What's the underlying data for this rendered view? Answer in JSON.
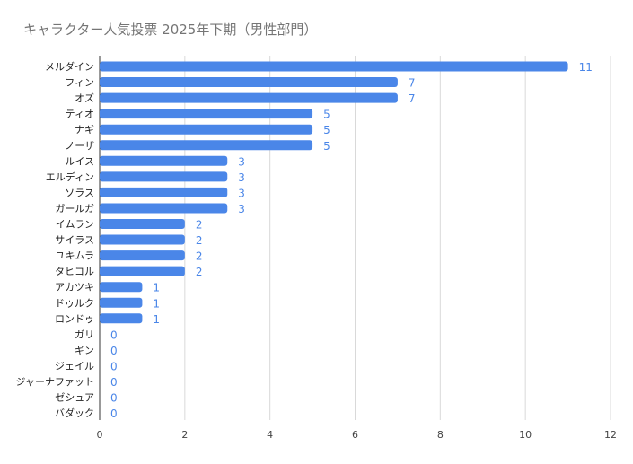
{
  "chart_data": {
    "type": "bar",
    "orientation": "horizontal",
    "title": "キャラクター人気投票 2025年下期（男性部門）",
    "categories": [
      "メルダイン",
      "フィン",
      "オズ",
      "ティオ",
      "ナギ",
      "ノーザ",
      "ルイス",
      "エルディン",
      "ソラス",
      "ガールガ",
      "イムラン",
      "サイラス",
      "ユキムラ",
      "タヒコル",
      "アカツキ",
      "ドゥルク",
      "ロンドゥ",
      "ガリ",
      "ギン",
      "ジェイル",
      "ジャーナファット",
      "ゼシュア",
      "バダック"
    ],
    "values": [
      11,
      7,
      7,
      5,
      5,
      5,
      3,
      3,
      3,
      3,
      2,
      2,
      2,
      2,
      1,
      1,
      1,
      0,
      0,
      0,
      0,
      0,
      0
    ],
    "xlim": [
      0,
      12
    ],
    "xticks": [
      0,
      2,
      4,
      6,
      8,
      10,
      12
    ],
    "xlabel": "",
    "ylabel": "",
    "grid": true,
    "bar_color": "#4a86e8",
    "label_color": "#4a86e8"
  }
}
